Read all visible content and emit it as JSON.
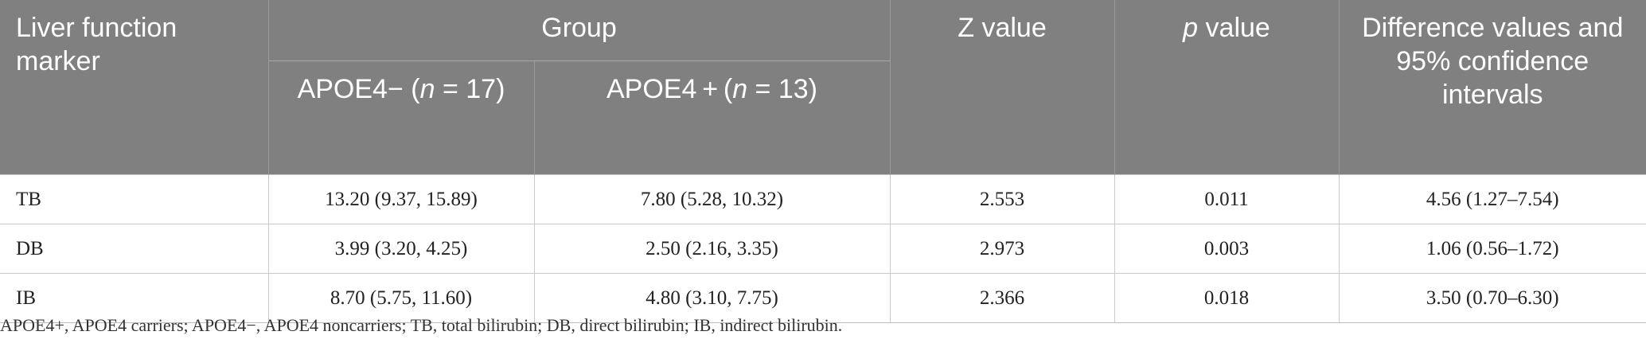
{
  "table": {
    "header": {
      "marker_label": "Liver function marker",
      "group_label": "Group",
      "group_sub": [
        {
          "prefix": "APOE4− (",
          "n": "n",
          "suffix": " = 17)"
        },
        {
          "prefix": "APOE4 + (",
          "n": "n",
          "suffix": " = 13)"
        }
      ],
      "z_label": "Z value",
      "p_italic": "p",
      "p_rest": " value",
      "diff_label": "Difference values and 95% confidence intervals"
    },
    "rows": [
      {
        "marker": "TB",
        "neg": "13.20 (9.37, 15.89)",
        "pos": "7.80 (5.28, 10.32)",
        "z": "2.553",
        "p": "0.011",
        "diff": "4.56 (1.27–7.54)"
      },
      {
        "marker": "DB",
        "neg": "3.99 (3.20, 4.25)",
        "pos": "2.50 (2.16, 3.35)",
        "z": "2.973",
        "p": "0.003",
        "diff": "1.06 (0.56–1.72)"
      },
      {
        "marker": "IB",
        "neg": "8.70 (5.75, 11.60)",
        "pos": "4.80 (3.10, 7.75)",
        "z": "2.366",
        "p": "0.018",
        "diff": "3.50 (0.70–6.30)"
      }
    ]
  },
  "footnote": "APOE4+, APOE4 carriers; APOE4−, APOE4 noncarriers; TB, total bilirubin; DB, direct bilirubin; IB, indirect bilirubin."
}
